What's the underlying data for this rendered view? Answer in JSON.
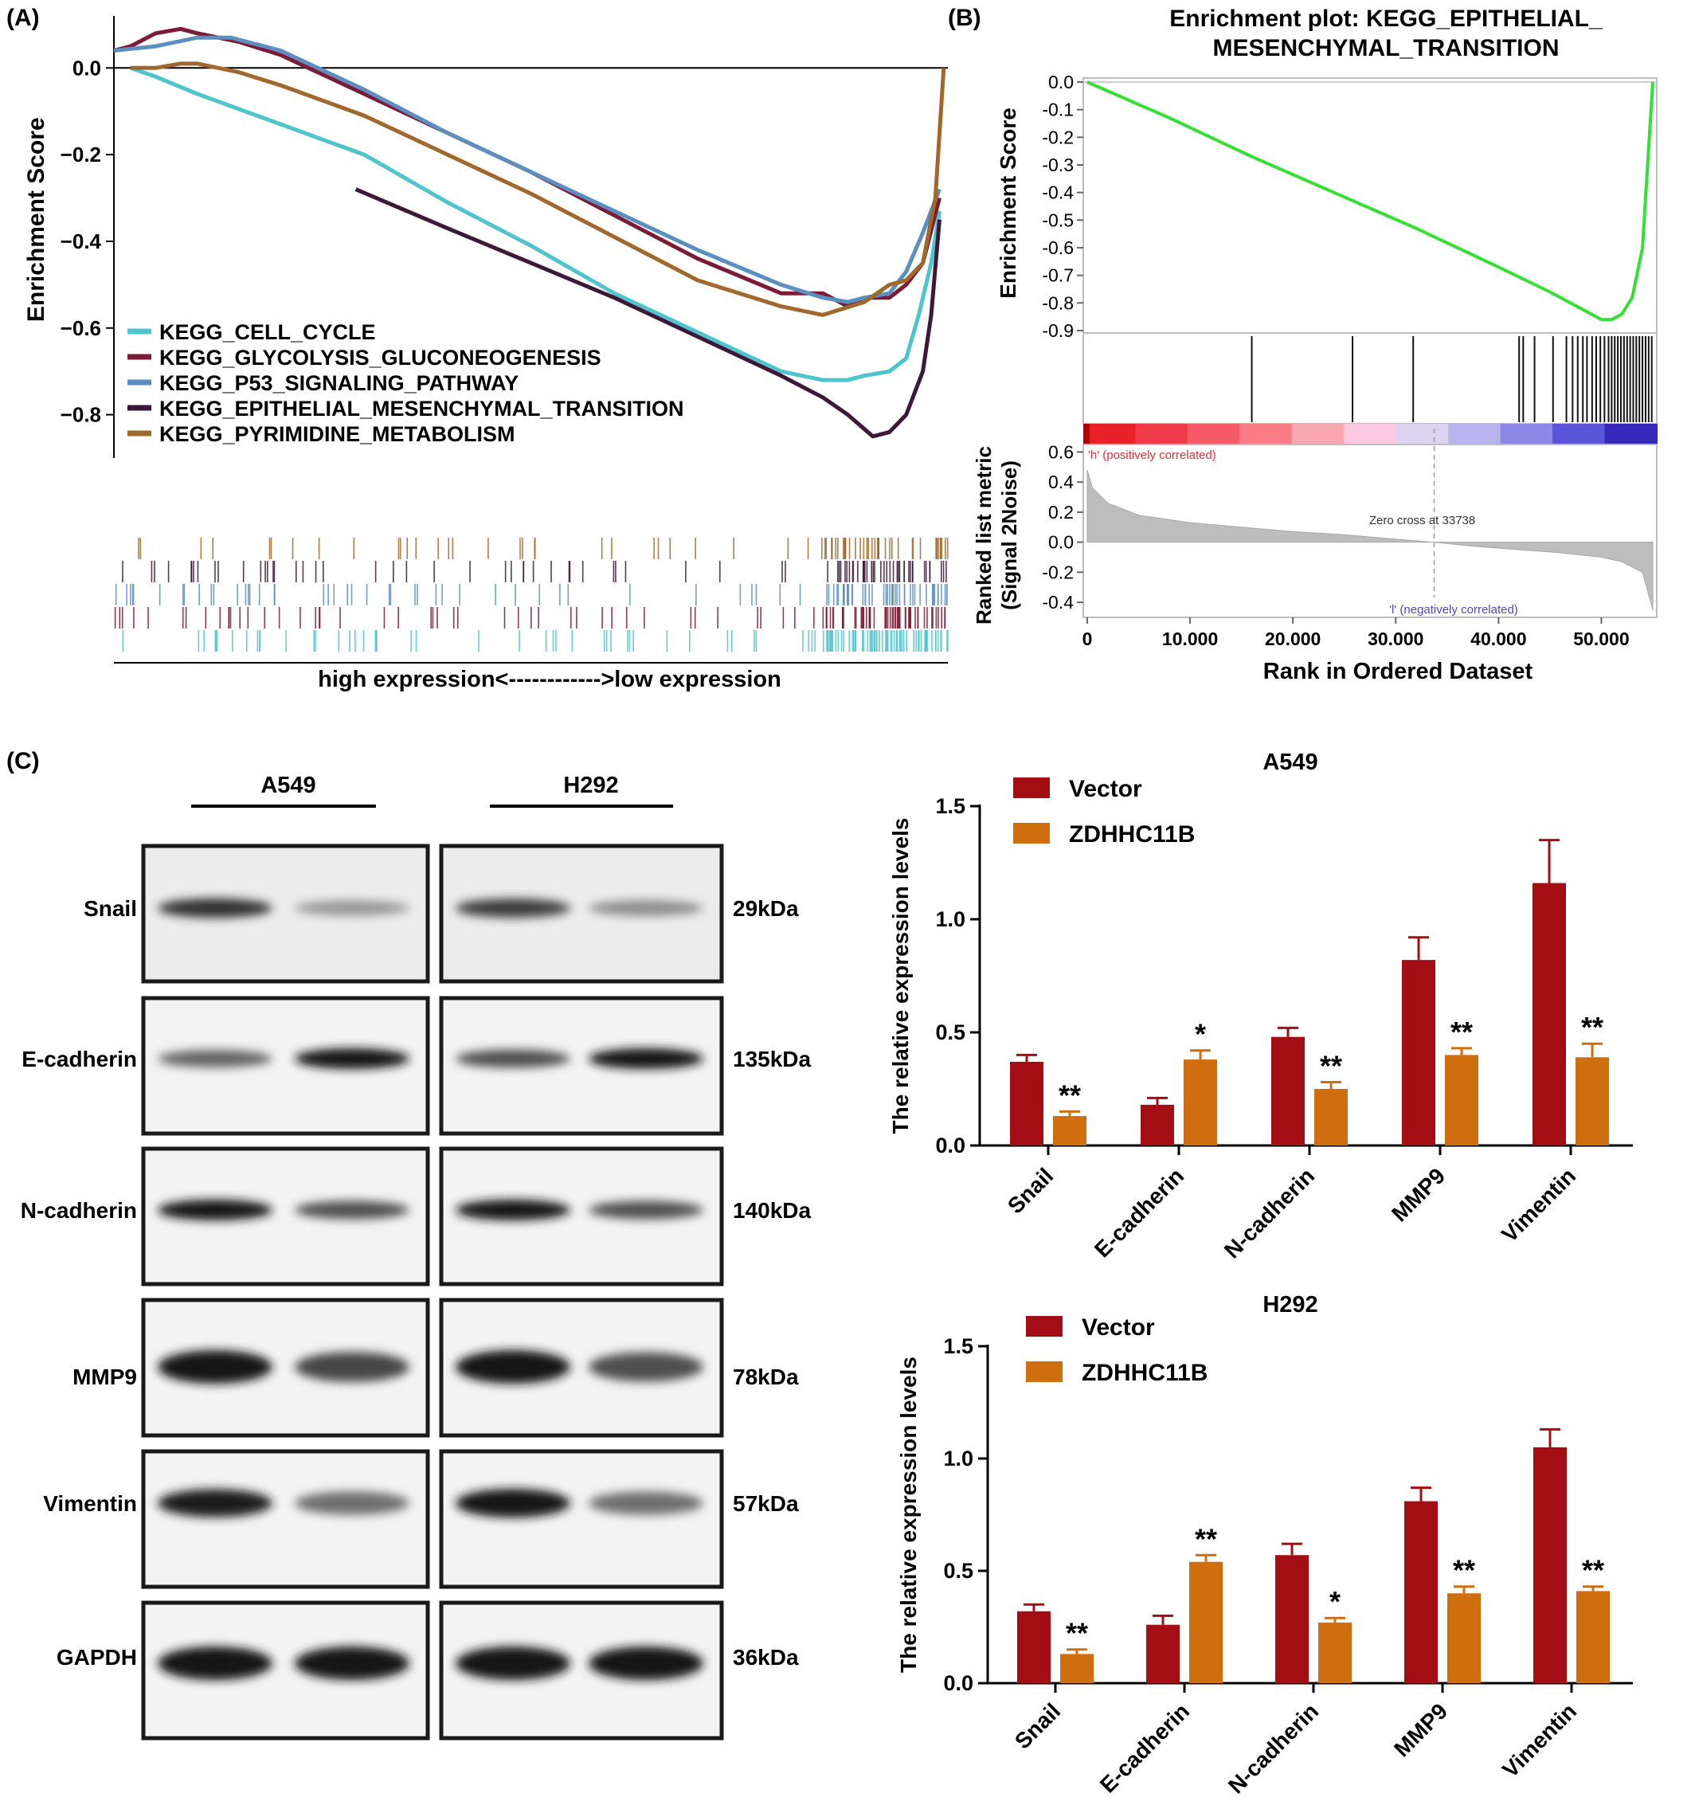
{
  "panel_labels": {
    "a": "(A)",
    "b": "(B)",
    "c": "(C)"
  },
  "chart_data": [
    {
      "panel": "(A)",
      "type": "line",
      "title": "",
      "xlabel": "high expression<------------>low expression",
      "ylabel": "Enrichment Score",
      "ylim": [
        -0.9,
        0.12
      ],
      "yticks": [
        0.0,
        -0.2,
        -0.4,
        -0.6,
        -0.8
      ],
      "ytick_labels": [
        "0.0",
        "−0.2",
        "−0.4",
        "−0.6",
        "−0.8"
      ],
      "xlim": [
        0,
        1
      ],
      "legend_position": "bottom-left",
      "series": [
        {
          "name": "KEGG_CELL_CYCLE",
          "color": "#4ec4cf",
          "x": [
            0.02,
            0.05,
            0.1,
            0.2,
            0.3,
            0.4,
            0.5,
            0.6,
            0.7,
            0.8,
            0.85,
            0.88,
            0.9,
            0.93,
            0.95,
            0.965,
            0.98,
            0.99
          ],
          "y": [
            0.0,
            -0.02,
            -0.06,
            -0.13,
            -0.2,
            -0.31,
            -0.41,
            -0.52,
            -0.61,
            -0.7,
            -0.72,
            -0.72,
            -0.71,
            -0.7,
            -0.67,
            -0.57,
            -0.45,
            -0.33
          ]
        },
        {
          "name": "KEGG_GLYCOLYSIS_GLUCONEOGENESIS",
          "color": "#7d1a35",
          "x": [
            0.0,
            0.02,
            0.05,
            0.08,
            0.1,
            0.15,
            0.2,
            0.3,
            0.4,
            0.5,
            0.6,
            0.7,
            0.8,
            0.85,
            0.88,
            0.9,
            0.93,
            0.95,
            0.97,
            0.99
          ],
          "y": [
            0.04,
            0.05,
            0.08,
            0.09,
            0.08,
            0.06,
            0.03,
            -0.06,
            -0.15,
            -0.24,
            -0.34,
            -0.44,
            -0.52,
            -0.52,
            -0.55,
            -0.53,
            -0.53,
            -0.5,
            -0.45,
            -0.3
          ]
        },
        {
          "name": "KEGG_P53_SIGNALING_PATHWAY",
          "color": "#5b8fc2",
          "x": [
            0.0,
            0.05,
            0.1,
            0.14,
            0.2,
            0.3,
            0.4,
            0.5,
            0.6,
            0.7,
            0.8,
            0.85,
            0.88,
            0.9,
            0.93,
            0.95,
            0.97,
            0.99
          ],
          "y": [
            0.04,
            0.05,
            0.07,
            0.07,
            0.04,
            -0.05,
            -0.15,
            -0.24,
            -0.33,
            -0.42,
            -0.5,
            -0.53,
            -0.54,
            -0.53,
            -0.52,
            -0.47,
            -0.38,
            -0.28
          ]
        },
        {
          "name": "KEGG_EPITHELIAL_MESENCHYMAL_TRANSITION",
          "color": "#3d1838",
          "x": [
            0.29,
            0.4,
            0.5,
            0.6,
            0.7,
            0.8,
            0.85,
            0.88,
            0.91,
            0.93,
            0.95,
            0.97,
            0.98,
            0.99
          ],
          "y": [
            -0.28,
            -0.37,
            -0.45,
            -0.53,
            -0.62,
            -0.71,
            -0.76,
            -0.8,
            -0.85,
            -0.84,
            -0.8,
            -0.7,
            -0.57,
            -0.35
          ]
        },
        {
          "name": "KEGG_PYRIMIDINE_METABOLISM",
          "color": "#a0682a",
          "x": [
            0.02,
            0.05,
            0.08,
            0.1,
            0.15,
            0.2,
            0.3,
            0.4,
            0.5,
            0.6,
            0.7,
            0.8,
            0.85,
            0.9,
            0.93,
            0.95,
            0.97,
            0.985,
            0.995
          ],
          "y": [
            0.0,
            0.0,
            0.01,
            0.01,
            -0.01,
            -0.04,
            -0.11,
            -0.2,
            -0.29,
            -0.39,
            -0.49,
            -0.55,
            -0.57,
            -0.54,
            -0.5,
            -0.49,
            -0.45,
            -0.3,
            0.0
          ]
        }
      ]
    },
    {
      "panel": "(B)",
      "type": "line",
      "title": "Enrichment plot: KEGG_EPITHELIAL_\nMESENCHYMAL_TRANSITION",
      "title_lines": [
        "Enrichment plot: KEGG_EPITHELIAL_",
        "MESENCHYMAL_TRANSITION"
      ],
      "ylabel": "Enrichment Score",
      "ylim": [
        -0.9,
        0.0
      ],
      "yticks": [
        0.0,
        -0.1,
        -0.2,
        -0.3,
        -0.4,
        -0.5,
        -0.6,
        -0.7,
        -0.8,
        -0.9
      ],
      "ytick_labels": [
        "0.0",
        "-0.1",
        "-0.2",
        "-0.3",
        "-0.4",
        "-0.5",
        "-0.6",
        "-0.7",
        "-0.8",
        "-0.9"
      ],
      "line_color": "#33e033",
      "x": [
        0,
        8000,
        16000,
        24000,
        32000,
        40000,
        45000,
        48000,
        50000,
        51000,
        52000,
        53000,
        54000,
        54500,
        55000
      ],
      "y": [
        0.0,
        -0.13,
        -0.27,
        -0.4,
        -0.53,
        -0.67,
        -0.76,
        -0.82,
        -0.86,
        -0.86,
        -0.84,
        -0.78,
        -0.6,
        -0.3,
        0.0
      ],
      "hits": [
        16000,
        25800,
        31700,
        42000,
        42400,
        43500,
        45300,
        46600,
        47200,
        47700,
        48200,
        48600,
        49100,
        49500,
        49900,
        50300,
        50700,
        51000,
        51300,
        51600,
        51900,
        52200,
        52500,
        52800,
        53100,
        53400,
        53700,
        54000,
        54300,
        54600,
        54900
      ],
      "ranked": {
        "ylabel_lines": [
          "Ranked list metric",
          "(Signal 2Noise)"
        ],
        "xlabel": "Rank in Ordered Dataset",
        "ylim": [
          -0.5,
          0.65
        ],
        "yticks": [
          0.6,
          0.4,
          0.2,
          0.0,
          -0.2,
          -0.4
        ],
        "ytick_labels": [
          "0.6",
          "0.4",
          "0.2",
          "0.0",
          "-0.2",
          "-0.4"
        ],
        "xlim": [
          0,
          55000
        ],
        "xticks": [
          0,
          10000,
          20000,
          30000,
          40000,
          50000
        ],
        "xtick_labels": [
          "0",
          "10.000",
          "20.000",
          "30.000",
          "40.000",
          "50.000"
        ],
        "zero_cross_label": "Zero cross at 33738",
        "zero_cross": 33738,
        "pos_label": "'h' (positively correlated)",
        "neg_label": "'l' (negatively correlated)",
        "x": [
          0,
          500,
          2000,
          5000,
          10000,
          15000,
          20000,
          25000,
          30000,
          33738,
          38000,
          42000,
          46000,
          50000,
          52000,
          54000,
          55000
        ],
        "y": [
          0.48,
          0.36,
          0.26,
          0.18,
          0.13,
          0.1,
          0.07,
          0.05,
          0.02,
          0.0,
          -0.03,
          -0.05,
          -0.07,
          -0.1,
          -0.13,
          -0.2,
          -0.45
        ]
      }
    },
    {
      "panel": "(C)",
      "type": "bar",
      "title": "A549",
      "ylabel": "The relative expression levels",
      "ylim": [
        0,
        1.5
      ],
      "yticks": [
        0.0,
        0.5,
        1.0,
        1.5
      ],
      "ytick_labels": [
        "0.0",
        "0.5",
        "1.0",
        "1.5"
      ],
      "categories": [
        "Snail",
        "E-cadherin",
        "N-cadherin",
        "MMP9",
        "Vimentin"
      ],
      "legend_position": "top-left",
      "series": [
        {
          "name": "Vector",
          "color": "#a30e14",
          "values": [
            0.37,
            0.18,
            0.48,
            0.82,
            1.16
          ],
          "errors": [
            0.03,
            0.03,
            0.04,
            0.1,
            0.19
          ]
        },
        {
          "name": "ZDHHC11B",
          "color": "#cf6e0e",
          "values": [
            0.13,
            0.38,
            0.25,
            0.4,
            0.39
          ],
          "errors": [
            0.02,
            0.04,
            0.03,
            0.03,
            0.06
          ]
        }
      ],
      "significance": [
        "**",
        "*",
        "**",
        "**",
        "**"
      ]
    },
    {
      "panel": "(C)",
      "type": "bar",
      "title": "H292",
      "ylabel": "The relative expression levels",
      "ylim": [
        0,
        1.5
      ],
      "yticks": [
        0.0,
        0.5,
        1.0,
        1.5
      ],
      "ytick_labels": [
        "0.0",
        "0.5",
        "1.0",
        "1.5"
      ],
      "categories": [
        "Snail",
        "E-cadherin",
        "N-cadherin",
        "MMP9",
        "Vimentin"
      ],
      "legend_position": "top-left",
      "series": [
        {
          "name": "Vector",
          "color": "#a30e14",
          "values": [
            0.32,
            0.26,
            0.57,
            0.81,
            1.05
          ],
          "errors": [
            0.03,
            0.04,
            0.05,
            0.06,
            0.08
          ]
        },
        {
          "name": "ZDHHC11B",
          "color": "#cf6e0e",
          "values": [
            0.13,
            0.54,
            0.27,
            0.4,
            0.41
          ],
          "errors": [
            0.02,
            0.03,
            0.02,
            0.03,
            0.02
          ]
        }
      ],
      "significance": [
        "**",
        "**",
        "*",
        "**",
        "**"
      ]
    }
  ],
  "western_blot": {
    "cell_lines": [
      "A549",
      "H292"
    ],
    "proteins": [
      {
        "name": "Snail",
        "kda": "29kDa",
        "bands": [
          [
            0.85,
            0.35
          ],
          [
            0.8,
            0.4
          ]
        ]
      },
      {
        "name": "E-cadherin",
        "kda": "135kDa",
        "bands": [
          [
            0.6,
            1.0
          ],
          [
            0.7,
            1.0
          ]
        ]
      },
      {
        "name": "N-cadherin",
        "kda": "140kDa",
        "bands": [
          [
            1.0,
            0.7
          ],
          [
            1.0,
            0.7
          ]
        ]
      },
      {
        "name": "MMP9",
        "kda": "78kDa",
        "bands": [
          [
            1.0,
            0.75
          ],
          [
            1.0,
            0.7
          ]
        ]
      },
      {
        "name": "Vimentin",
        "kda": "57kDa",
        "bands": [
          [
            0.95,
            0.55
          ],
          [
            1.0,
            0.55
          ]
        ]
      },
      {
        "name": "GAPDH",
        "kda": "36kDa",
        "bands": [
          [
            1.0,
            1.0
          ],
          [
            1.0,
            1.0
          ]
        ]
      }
    ]
  }
}
